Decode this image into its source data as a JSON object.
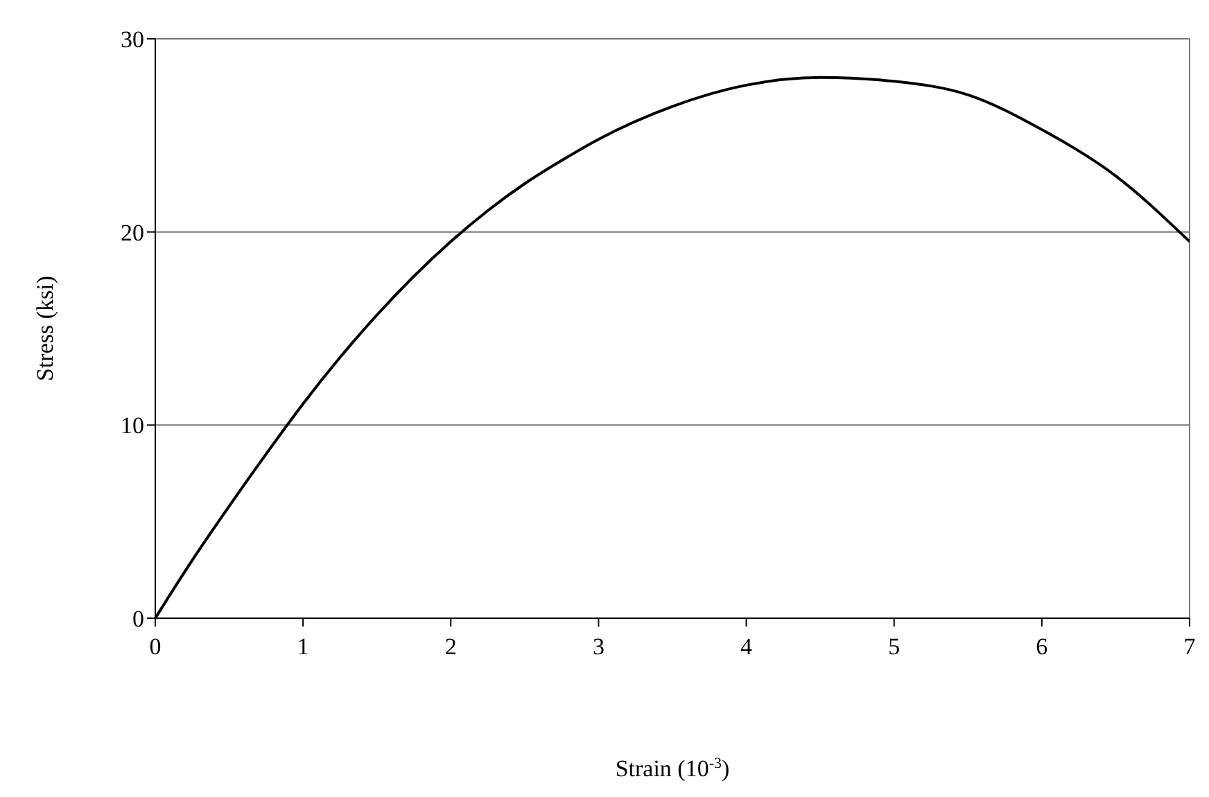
{
  "chart_data": {
    "type": "line",
    "xlabel": "Strain (10$^{-3}$)",
    "ylabel": "Stress (ksi)",
    "x": [
      0,
      0.25,
      0.5,
      0.75,
      1,
      1.25,
      1.5,
      1.75,
      2,
      2.25,
      2.5,
      2.75,
      3,
      3.5,
      4,
      4.5,
      5,
      5.5,
      6,
      6.5,
      7
    ],
    "series": [
      {
        "color": "#000000",
        "values": [
          0,
          3,
          5.8,
          8.5,
          11.1,
          13.5,
          15.7,
          17.7,
          19.5,
          21.1,
          22.5,
          23.7,
          24.8,
          26.5,
          27.6,
          28,
          27.8,
          27.1,
          25.3,
          22.9,
          19.5
        ]
      }
    ],
    "xlim": [
      0,
      7
    ],
    "xticks": [
      0,
      1,
      2,
      3,
      4,
      5,
      6,
      7
    ],
    "ylim": [
      0,
      30
    ],
    "yticks": [
      0,
      10,
      20,
      30
    ],
    "grid": "y",
    "marker": "none",
    "line_style": "solid",
    "legend": false
  }
}
